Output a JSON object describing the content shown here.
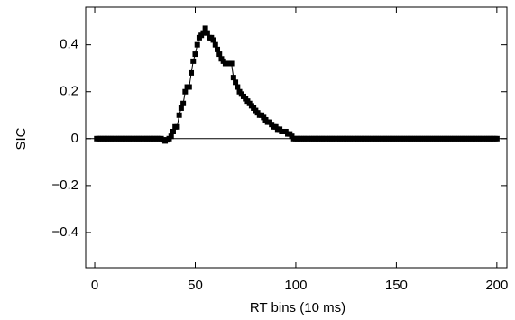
{
  "chart_data": {
    "type": "line",
    "xlabel": "RT bins (10 ms)",
    "ylabel": "SIC",
    "x": [
      1,
      2,
      3,
      4,
      5,
      6,
      7,
      8,
      9,
      10,
      11,
      12,
      13,
      14,
      15,
      16,
      17,
      18,
      19,
      20,
      21,
      22,
      23,
      24,
      25,
      26,
      27,
      28,
      29,
      30,
      31,
      32,
      33,
      34,
      35,
      36,
      37,
      38,
      39,
      40,
      41,
      42,
      43,
      44,
      45,
      46,
      47,
      48,
      49,
      50,
      51,
      52,
      53,
      54,
      55,
      56,
      57,
      58,
      59,
      60,
      61,
      62,
      63,
      64,
      65,
      66,
      67,
      68,
      69,
      70,
      71,
      72,
      73,
      74,
      75,
      76,
      77,
      78,
      79,
      80,
      81,
      82,
      83,
      84,
      85,
      86,
      87,
      88,
      89,
      90,
      91,
      92,
      93,
      94,
      95,
      96,
      97,
      98,
      99,
      100,
      101,
      102,
      103,
      104,
      105,
      106,
      107,
      108,
      109,
      110,
      111,
      112,
      113,
      114,
      115,
      116,
      117,
      118,
      119,
      120,
      121,
      122,
      123,
      124,
      125,
      126,
      127,
      128,
      129,
      130,
      131,
      132,
      133,
      134,
      135,
      136,
      137,
      138,
      139,
      140,
      141,
      142,
      143,
      144,
      145,
      146,
      147,
      148,
      149,
      150,
      151,
      152,
      153,
      154,
      155,
      156,
      157,
      158,
      159,
      160,
      161,
      162,
      163,
      164,
      165,
      166,
      167,
      168,
      169,
      170,
      171,
      172,
      173,
      174,
      175,
      176,
      177,
      178,
      179,
      180,
      181,
      182,
      183,
      184,
      185,
      186,
      187,
      188,
      189,
      190,
      191,
      192,
      193,
      194,
      195,
      196,
      197,
      198,
      199,
      200
    ],
    "series": [
      {
        "color": "#000000",
        "values": [
          0,
          0,
          0,
          0,
          0,
          0,
          0,
          0,
          0,
          0,
          0,
          0,
          0,
          0,
          0,
          0,
          0,
          0,
          0,
          0,
          0,
          0,
          0,
          0,
          0,
          0,
          0,
          0,
          0,
          0,
          0,
          0,
          0,
          -0.005,
          -0.01,
          -0.005,
          0,
          0.01,
          0.03,
          0.05,
          0.05,
          0.1,
          0.13,
          0.15,
          0.2,
          0.22,
          0.22,
          0.28,
          0.33,
          0.36,
          0.4,
          0.43,
          0.44,
          0.45,
          0.47,
          0.45,
          0.43,
          0.43,
          0.42,
          0.4,
          0.38,
          0.36,
          0.34,
          0.33,
          0.32,
          0.32,
          0.32,
          0.32,
          0.26,
          0.24,
          0.22,
          0.2,
          0.19,
          0.18,
          0.17,
          0.16,
          0.15,
          0.14,
          0.13,
          0.12,
          0.11,
          0.1,
          0.1,
          0.09,
          0.08,
          0.07,
          0.07,
          0.06,
          0.05,
          0.05,
          0.04,
          0.04,
          0.03,
          0.03,
          0.03,
          0.02,
          0.02,
          0.01,
          0,
          0,
          0,
          0,
          0,
          0,
          0,
          0,
          0,
          0,
          0,
          0,
          0,
          0,
          0,
          0,
          0,
          0,
          0,
          0,
          0,
          0,
          0,
          0,
          0,
          0,
          0,
          0,
          0,
          0,
          0,
          0,
          0,
          0,
          0,
          0,
          0,
          0,
          0,
          0,
          0,
          0,
          0,
          0,
          0,
          0,
          0,
          0,
          0,
          0,
          0,
          0,
          0,
          0,
          0,
          0,
          0,
          0,
          0,
          0,
          0,
          0,
          0,
          0,
          0,
          0,
          0,
          0,
          0,
          0,
          0,
          0,
          0,
          0,
          0,
          0,
          0,
          0,
          0,
          0,
          0,
          0,
          0,
          0,
          0,
          0,
          0,
          0,
          0,
          0,
          0,
          0,
          0,
          0,
          0,
          0,
          0,
          0,
          0,
          0,
          0,
          0
        ]
      }
    ],
    "xlim": [
      -4.5,
      205
    ],
    "ylim": [
      -0.55,
      0.56
    ],
    "xticks": [
      0,
      50,
      100,
      150,
      200
    ],
    "yticks": [
      {
        "value": -0.4,
        "label": "−0.4"
      },
      {
        "value": -0.2,
        "label": "−0.2"
      },
      0,
      0.2,
      0.4
    ]
  }
}
